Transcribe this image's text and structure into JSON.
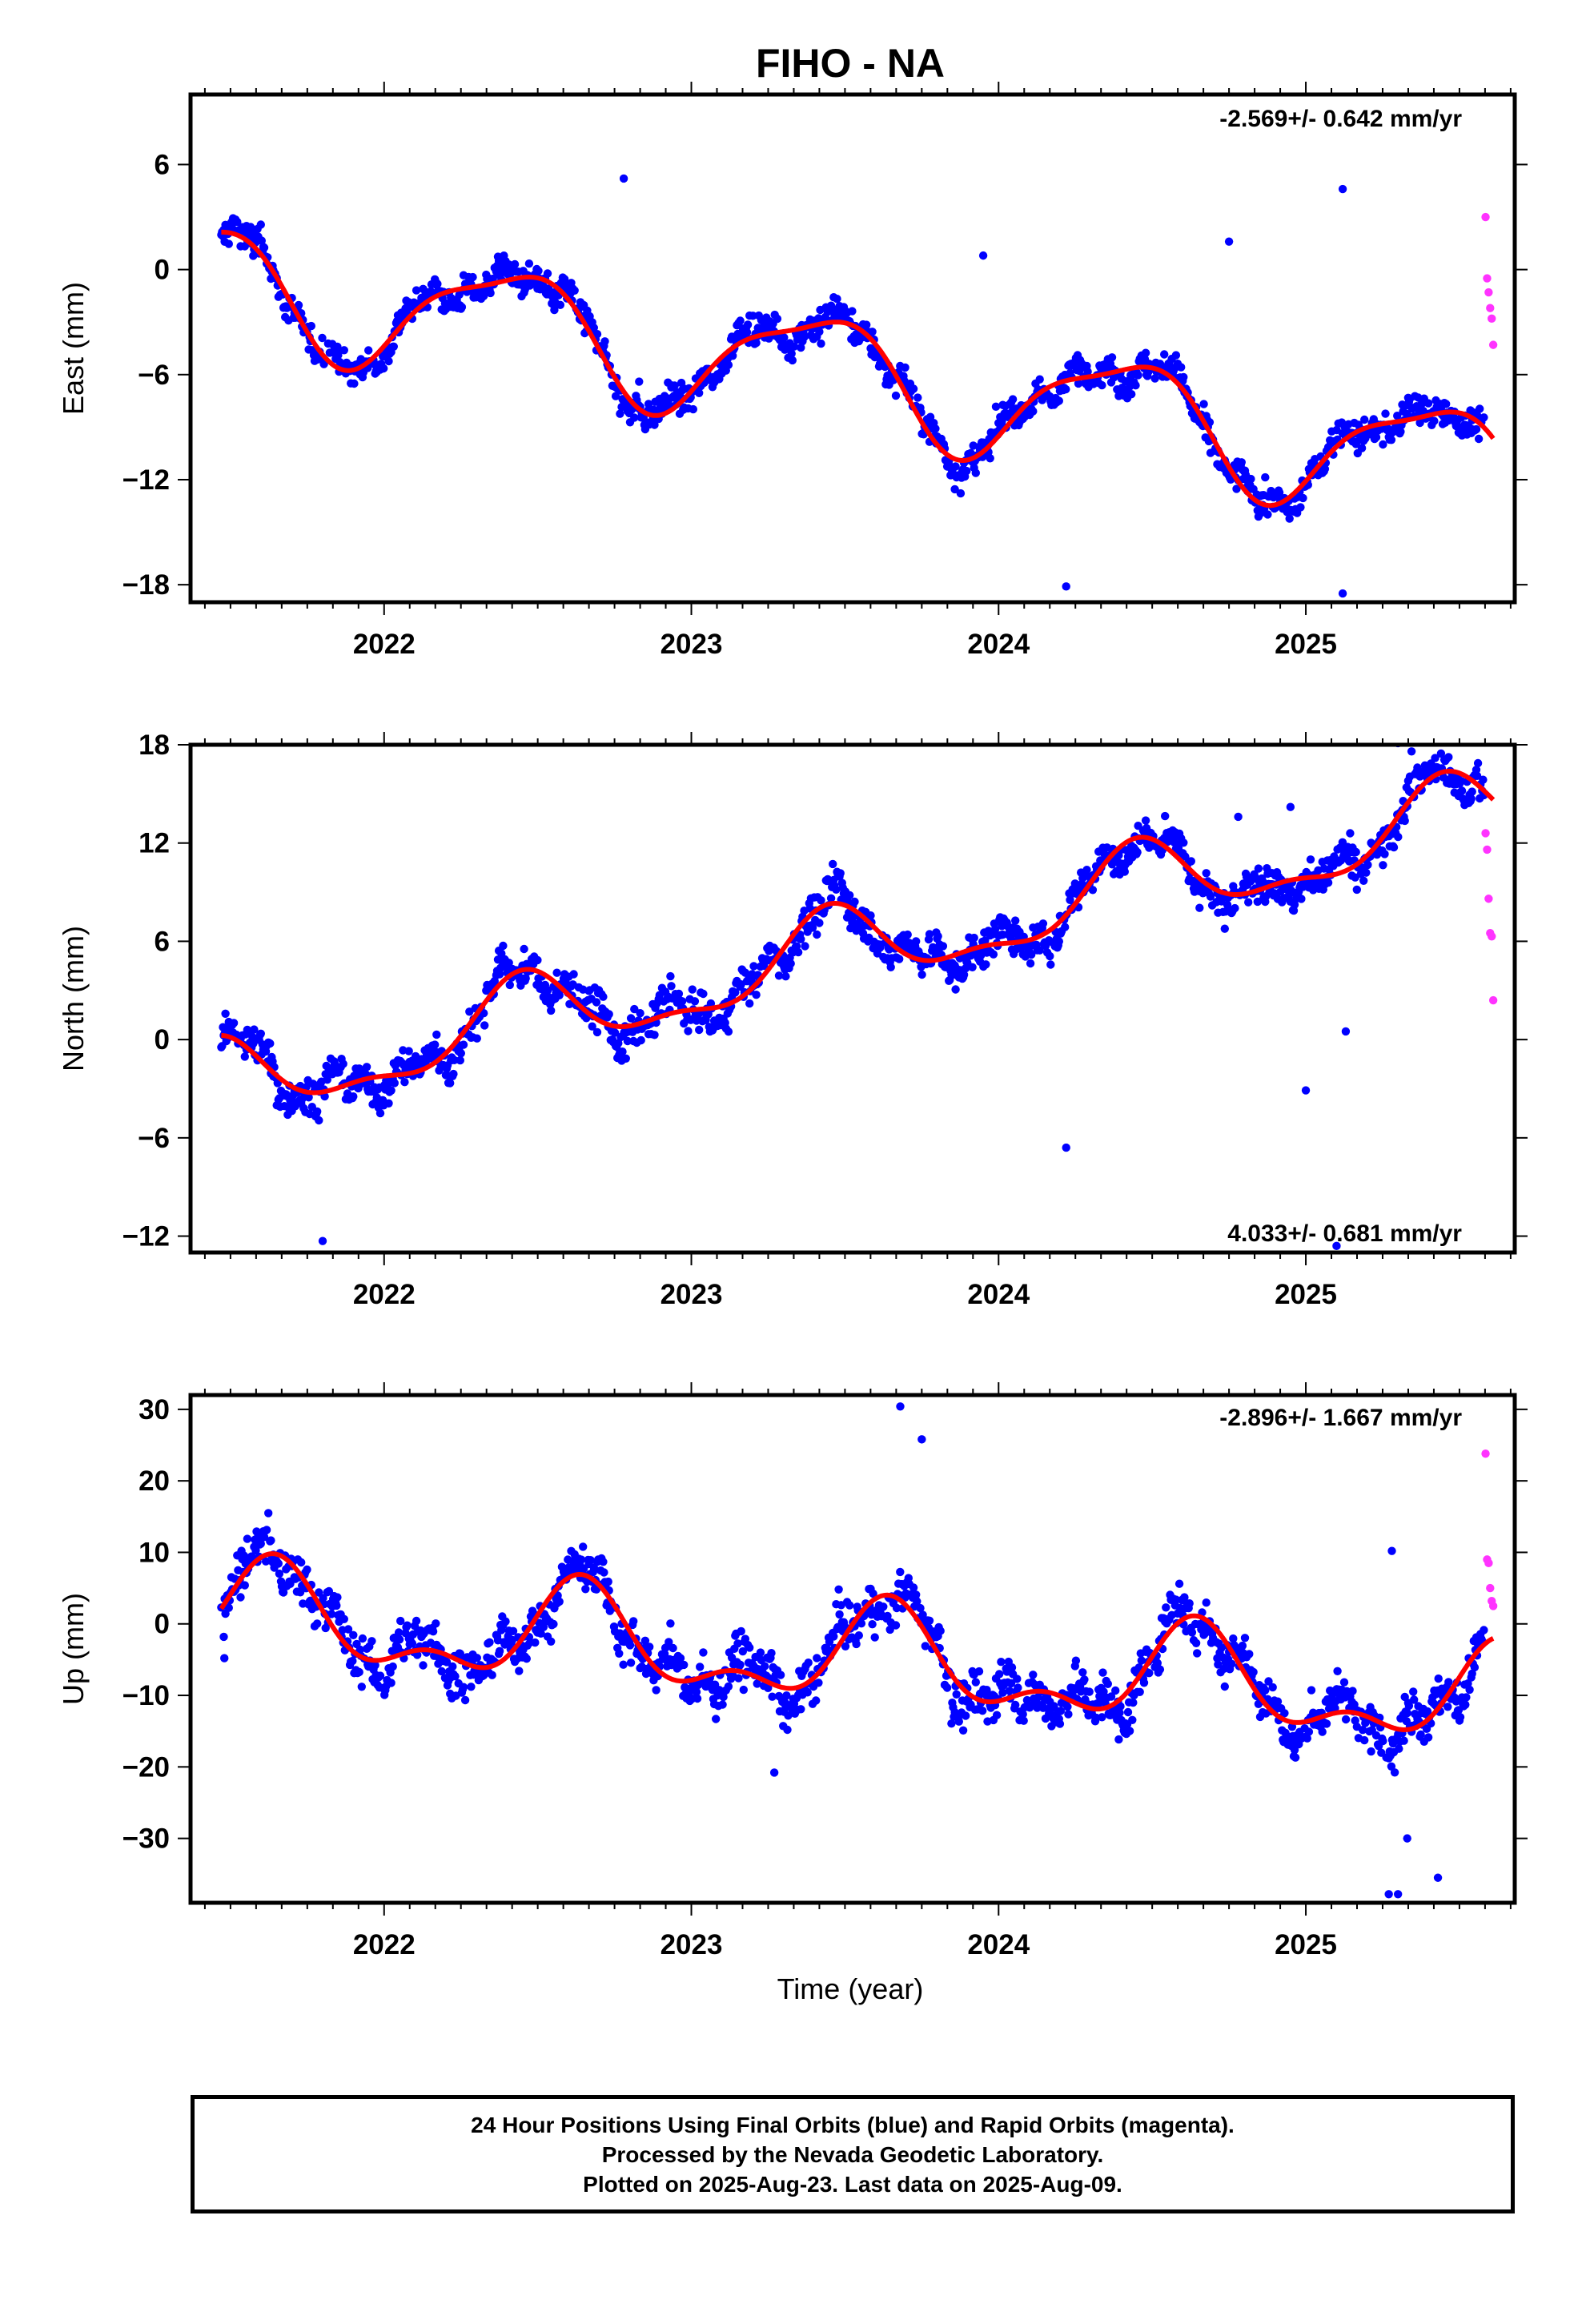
{
  "title": "FIHO - NA",
  "colors": {
    "final_orbits": "#0000ff",
    "rapid_orbits": "#ff33ff",
    "model_fit": "#ff0000",
    "frame": "#000000"
  },
  "chart_data": [
    {
      "type": "scatter",
      "ylabel": "East (mm)",
      "xlabel": "",
      "rate_label": "-2.569+/- 0.642 mm/yr",
      "xlim": [
        2021.37,
        2025.68
      ],
      "ylim": [
        -19,
        10
      ],
      "x_ticks": [
        2022,
        2023,
        2024,
        2025
      ],
      "y_ticks": [
        -18,
        -12,
        -6,
        0,
        6
      ],
      "grid": false,
      "model": {
        "offset": -0.7,
        "trend": -2.569,
        "annual_amp": 3.2,
        "semiannual_amp": 0.9,
        "annual_peak": 2021.4,
        "semiannual_peak": 2021.6
      },
      "outliers": [
        [
          2024.22,
          -18.1
        ],
        [
          2025.12,
          -18.5
        ],
        [
          2025.12,
          4.6
        ],
        [
          2022.83,
          -6.4
        ],
        [
          2022.97,
          -6.9
        ],
        [
          2023.95,
          0.8
        ],
        [
          2022.78,
          5.2
        ],
        [
          2024.75,
          1.6
        ]
      ],
      "rapid_points": [
        [
          2025.585,
          3.0
        ],
        [
          2025.59,
          -0.5
        ],
        [
          2025.595,
          -1.3
        ],
        [
          2025.6,
          -2.2
        ],
        [
          2025.605,
          -2.8
        ],
        [
          2025.61,
          -4.3
        ]
      ]
    },
    {
      "type": "scatter",
      "ylabel": "North (mm)",
      "xlabel": "",
      "rate_label": "4.033+/- 0.681 mm/yr",
      "xlim": [
        2021.37,
        2025.68
      ],
      "ylim": [
        -13,
        18
      ],
      "x_ticks": [
        2022,
        2023,
        2024,
        2025
      ],
      "y_ticks": [
        -12,
        -6,
        0,
        6,
        12,
        18
      ],
      "grid": false,
      "model": {
        "offset": -2.9,
        "trend": 4.033,
        "annual_amp": 2.3,
        "semiannual_amp": 0.9,
        "annual_peak": 2021.45,
        "semiannual_peak": 2021.45
      },
      "outliers": [
        [
          2021.8,
          -12.3
        ],
        [
          2025.1,
          -12.6
        ],
        [
          2025.0,
          -3.1
        ],
        [
          2024.22,
          -6.6
        ],
        [
          2024.78,
          13.6
        ],
        [
          2024.95,
          14.2
        ],
        [
          2025.3,
          18.1
        ],
        [
          2025.13,
          0.5
        ]
      ],
      "rapid_points": [
        [
          2025.585,
          12.6
        ],
        [
          2025.59,
          11.6
        ],
        [
          2025.595,
          8.6
        ],
        [
          2025.6,
          6.5
        ],
        [
          2025.605,
          6.3
        ],
        [
          2025.61,
          2.4
        ]
      ]
    },
    {
      "type": "scatter",
      "ylabel": "Up (mm)",
      "xlabel": "Time (year)",
      "rate_label": "-2.896+/- 1.667 mm/yr",
      "xlim": [
        2021.37,
        2025.68
      ],
      "ylim": [
        -39,
        32
      ],
      "x_ticks": [
        2022,
        2023,
        2024,
        2025
      ],
      "y_ticks": [
        -30,
        -20,
        -10,
        0,
        10,
        20,
        30
      ],
      "grid": false,
      "model": {
        "offset": 1.0,
        "trend": -2.896,
        "annual_amp": 6.0,
        "semiannual_amp": 3.3,
        "annual_peak": 2021.64,
        "semiannual_peak": 2021.64
      },
      "outliers": [
        [
          2023.68,
          30.4
        ],
        [
          2023.75,
          25.8
        ],
        [
          2025.27,
          -37.8
        ],
        [
          2025.3,
          -37.8
        ],
        [
          2025.43,
          -35.5
        ],
        [
          2025.33,
          -30.0
        ],
        [
          2025.28,
          10.2
        ],
        [
          2023.27,
          -20.8
        ],
        [
          2021.48,
          -4.8
        ]
      ],
      "rapid_points": [
        [
          2025.585,
          23.8
        ],
        [
          2025.59,
          9.0
        ],
        [
          2025.595,
          8.5
        ],
        [
          2025.6,
          5.0
        ],
        [
          2025.605,
          3.2
        ],
        [
          2025.61,
          2.5
        ]
      ]
    }
  ],
  "footer": {
    "line1": "24 Hour Positions Using Final Orbits (blue) and Rapid Orbits (magenta).",
    "line2": "Processed by the Nevada Geodetic Laboratory.",
    "line3": "Plotted on 2025-Aug-23. Last data on 2025-Aug-09."
  }
}
